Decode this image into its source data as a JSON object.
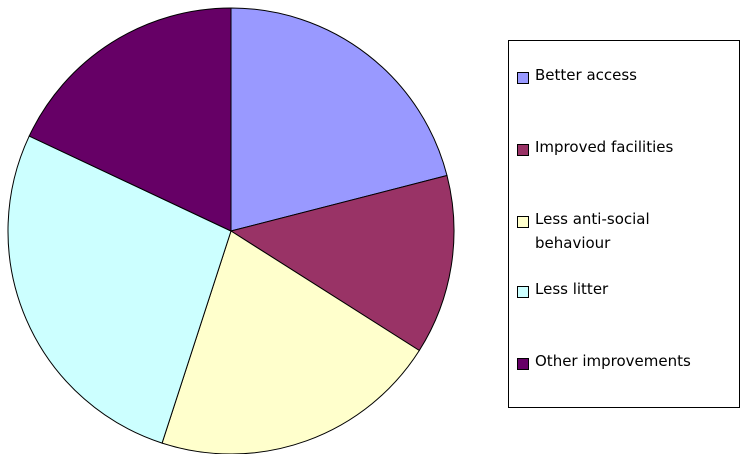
{
  "chart_data": {
    "type": "pie",
    "title": "",
    "slices": [
      {
        "label": "Better access",
        "value": 21,
        "color": "#9999FF"
      },
      {
        "label": "Improved facilities",
        "value": 13,
        "color": "#993366"
      },
      {
        "label": "Less anti-social behaviour",
        "value": 21,
        "color": "#FFFFCC"
      },
      {
        "label": "Less litter",
        "value": 27,
        "color": "#CCFFFF"
      },
      {
        "label": "Other improvements",
        "value": 18,
        "color": "#660066"
      }
    ],
    "legend_position": "right",
    "start": "top, clockwise"
  }
}
